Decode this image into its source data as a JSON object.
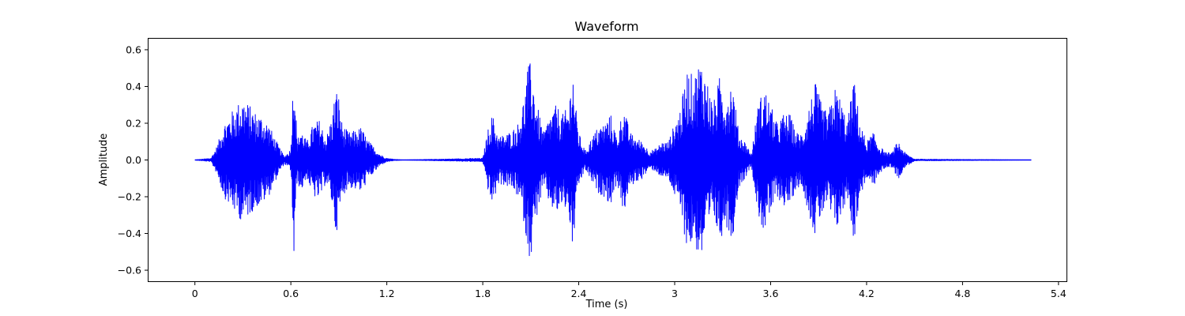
{
  "chart_data": {
    "type": "line",
    "title": "Waveform",
    "xlabel": "Time (s)",
    "ylabel": "Amplitude",
    "xlim": [
      -0.29,
      5.45
    ],
    "ylim": [
      -0.66,
      0.66
    ],
    "xticks": [
      {
        "value": 0,
        "label": "0"
      },
      {
        "value": 0.6,
        "label": "0.6"
      },
      {
        "value": 1.2,
        "label": "1.2"
      },
      {
        "value": 1.8,
        "label": "1.8"
      },
      {
        "value": 2.4,
        "label": "2.4"
      },
      {
        "value": 3.0,
        "label": "3"
      },
      {
        "value": 3.6,
        "label": "3.6"
      },
      {
        "value": 4.2,
        "label": "4.2"
      },
      {
        "value": 4.8,
        "label": "4.8"
      },
      {
        "value": 5.4,
        "label": "5.4"
      }
    ],
    "yticks": [
      {
        "value": -0.6,
        "label": "−0.6"
      },
      {
        "value": -0.4,
        "label": "−0.4"
      },
      {
        "value": -0.2,
        "label": "−0.2"
      },
      {
        "value": 0.0,
        "label": "0.0"
      },
      {
        "value": 0.2,
        "label": "0.2"
      },
      {
        "value": 0.4,
        "label": "0.4"
      },
      {
        "value": 0.6,
        "label": "0.6"
      }
    ],
    "grid": false,
    "line_color": "#0000ff",
    "series": [
      {
        "x": [
          0.0,
          0.1,
          0.14,
          0.18,
          0.22,
          0.26,
          0.3,
          0.34,
          0.38,
          0.42,
          0.46,
          0.5,
          0.54,
          0.56,
          0.6,
          0.62,
          0.63,
          0.64,
          0.66,
          0.7,
          0.74,
          0.78,
          0.82,
          0.86,
          0.88,
          0.9,
          0.92,
          0.96,
          1.0,
          1.04,
          1.08,
          1.12,
          1.16,
          1.2,
          1.24,
          1.3,
          1.8,
          1.84,
          1.86,
          1.9,
          1.94,
          1.98,
          2.02,
          2.06,
          2.08,
          2.1,
          2.14,
          2.18,
          2.22,
          2.26,
          2.3,
          2.34,
          2.36,
          2.38,
          2.4,
          2.44,
          2.48,
          2.52,
          2.56,
          2.6,
          2.64,
          2.68,
          2.72,
          2.76,
          2.8,
          2.84,
          2.88,
          2.92,
          2.96,
          3.0,
          3.04,
          3.08,
          3.12,
          3.16,
          3.2,
          3.24,
          3.28,
          3.32,
          3.36,
          3.4,
          3.44,
          3.48,
          3.52,
          3.56,
          3.6,
          3.64,
          3.68,
          3.72,
          3.76,
          3.8,
          3.84,
          3.88,
          3.92,
          3.96,
          4.0,
          4.04,
          4.08,
          4.12,
          4.16,
          4.2,
          4.24,
          4.28,
          4.32,
          4.36,
          4.38,
          4.4,
          4.44,
          4.5,
          5.23
        ],
        "amplitude": [
          0.0,
          0.01,
          0.08,
          0.2,
          0.25,
          0.3,
          0.34,
          0.3,
          0.26,
          0.24,
          0.2,
          0.12,
          0.05,
          0.02,
          0.06,
          0.6,
          0.3,
          0.1,
          0.18,
          0.1,
          0.2,
          0.22,
          0.12,
          0.25,
          0.4,
          0.35,
          0.2,
          0.15,
          0.16,
          0.18,
          0.11,
          0.07,
          0.03,
          0.01,
          0.005,
          0.0,
          0.01,
          0.2,
          0.25,
          0.13,
          0.14,
          0.16,
          0.2,
          0.35,
          0.5,
          0.54,
          0.3,
          0.15,
          0.25,
          0.3,
          0.25,
          0.3,
          0.55,
          0.3,
          0.15,
          0.05,
          0.12,
          0.18,
          0.2,
          0.25,
          0.12,
          0.3,
          0.15,
          0.12,
          0.1,
          0.05,
          0.06,
          0.1,
          0.1,
          0.2,
          0.3,
          0.5,
          0.45,
          0.56,
          0.45,
          0.3,
          0.45,
          0.35,
          0.45,
          0.15,
          0.1,
          0.03,
          0.3,
          0.4,
          0.3,
          0.2,
          0.25,
          0.25,
          0.15,
          0.15,
          0.3,
          0.42,
          0.3,
          0.25,
          0.4,
          0.33,
          0.2,
          0.45,
          0.2,
          0.1,
          0.15,
          0.08,
          0.04,
          0.04,
          0.08,
          0.1,
          0.04,
          0.005,
          0.0
        ]
      }
    ]
  }
}
